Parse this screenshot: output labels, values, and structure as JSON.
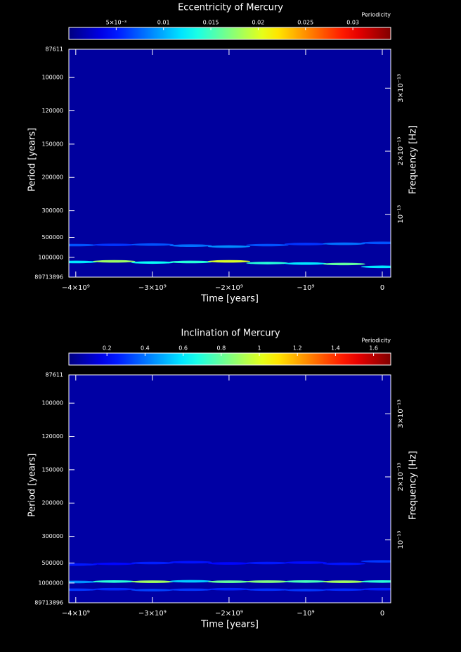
{
  "chart_data": [
    {
      "type": "spectrogram",
      "title": "Eccentricity of Mercury",
      "colorbar_label": "Periodicity",
      "clim": [
        0,
        0.034
      ],
      "cticks": [
        {
          "value": 0.005,
          "label": "5×10⁻³"
        },
        0.01,
        0.015,
        0.02,
        0.025,
        0.03
      ],
      "xlabel": "Time [years]",
      "ylabel": "Period [years]",
      "y2label": "Frequency [Hz]",
      "xlim": [
        -4090000000,
        110000000
      ],
      "xticks": [
        {
          "value": -4000000000,
          "label": "−4×10⁹"
        },
        {
          "value": -3000000000,
          "label": "−3×10⁹"
        },
        {
          "value": -2000000000,
          "label": "−2×10⁹"
        },
        {
          "value": -1000000000,
          "label": "−10⁹"
        },
        0
      ],
      "ylim": [
        87611,
        89713896
      ],
      "yscale": "reciprocal",
      "yticks": [
        87611,
        100000,
        120000,
        150000,
        200000,
        300000,
        500000,
        1000000,
        89713896
      ],
      "y2lim": [
        3.617e-13,
        3.532e-16
      ],
      "y2ticks": [
        {
          "value": 1e-13,
          "label": "10⁻¹³"
        },
        {
          "value": 2e-13,
          "label": "2×10⁻¹³"
        },
        {
          "value": 3e-13,
          "label": "3×10⁻¹³"
        }
      ],
      "background": 0.001,
      "ridges": [
        {
          "x": [
            -4000000000,
            -3500000000,
            -3000000000,
            -2500000000,
            -2000000000,
            -1500000000,
            -1000000000,
            -500000000,
            0
          ],
          "period": [
            620000,
            615000,
            610000,
            630000,
            650000,
            620000,
            600000,
            595000,
            580000
          ],
          "intensity": [
            0.007,
            0.006,
            0.007,
            0.008,
            0.009,
            0.007,
            0.006,
            0.008,
            0.007
          ]
        },
        {
          "x": [
            -4000000000,
            -3500000000,
            -3000000000,
            -2500000000,
            -2000000000,
            -1500000000,
            -1000000000,
            -500000000,
            0
          ],
          "period": [
            1300000,
            1250000,
            1350000,
            1300000,
            1250000,
            1400000,
            1450000,
            1500000,
            1900000
          ],
          "intensity": [
            0.012,
            0.018,
            0.013,
            0.014,
            0.02,
            0.014,
            0.012,
            0.016,
            0.012
          ]
        }
      ]
    },
    {
      "type": "spectrogram",
      "title": "Inclination of Mercury",
      "colorbar_label": "Periodicity",
      "clim": [
        0,
        1.69
      ],
      "cticks": [
        0.2,
        0.4,
        0.6,
        0.8,
        1,
        1.2,
        1.4,
        1.6
      ],
      "xlabel": "Time [years]",
      "ylabel": "Period [years]",
      "y2label": "Frequency [Hz]",
      "xlim": [
        -4090000000,
        110000000
      ],
      "xticks": [
        {
          "value": -4000000000,
          "label": "−4×10⁹"
        },
        {
          "value": -3000000000,
          "label": "−3×10⁹"
        },
        {
          "value": -2000000000,
          "label": "−2×10⁹"
        },
        {
          "value": -1000000000,
          "label": "−10⁹"
        },
        0
      ],
      "ylim": [
        87611,
        89713896
      ],
      "yscale": "reciprocal",
      "yticks": [
        87611,
        100000,
        120000,
        150000,
        200000,
        300000,
        500000,
        1000000,
        89713896
      ],
      "y2lim": [
        3.617e-13,
        3.532e-16
      ],
      "y2ticks": [
        {
          "value": 1e-13,
          "label": "10⁻¹³"
        },
        {
          "value": 2e-13,
          "label": "2×10⁻¹³"
        },
        {
          "value": 3e-13,
          "label": "3×10⁻¹³"
        }
      ],
      "background": 0.06,
      "ridges": [
        {
          "x": [
            -4000000000,
            -3500000000,
            -3000000000,
            -2500000000,
            -2000000000,
            -1500000000,
            -1000000000,
            -500000000,
            0
          ],
          "period": [
            520000,
            510000,
            500000,
            490000,
            505000,
            500000,
            495000,
            510000,
            480000
          ],
          "intensity": [
            0.25,
            0.22,
            0.26,
            0.24,
            0.22,
            0.25,
            0.23,
            0.24,
            0.3
          ]
        },
        {
          "x": [
            -4000000000,
            -3500000000,
            -3000000000,
            -2500000000,
            -2000000000,
            -1500000000,
            -1000000000,
            -500000000,
            0
          ],
          "period": [
            950000,
            930000,
            940000,
            920000,
            940000,
            935000,
            930000,
            940000,
            930000
          ],
          "intensity": [
            0.45,
            0.7,
            0.9,
            0.55,
            0.8,
            0.85,
            0.75,
            0.9,
            0.7
          ]
        },
        {
          "x": [
            -4000000000,
            -3500000000,
            -3000000000,
            -2500000000,
            -2000000000,
            -1500000000,
            -1000000000,
            -500000000,
            0
          ],
          "period": [
            1500000,
            1450000,
            1550000,
            1500000,
            1450000,
            1500000,
            1550000,
            1500000,
            1450000
          ],
          "intensity": [
            0.3,
            0.28,
            0.32,
            0.3,
            0.27,
            0.29,
            0.3,
            0.28,
            0.26
          ]
        }
      ]
    }
  ]
}
